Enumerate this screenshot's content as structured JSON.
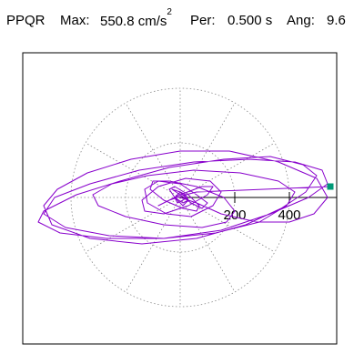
{
  "header": {
    "station": "PPQR",
    "max_label": "Max:",
    "max_value": "550.8 cm/s",
    "max_exponent": "2",
    "per_label": "Per:",
    "per_value": "0.500 s",
    "ang_label": "Ang:",
    "ang_value": "9.6"
  },
  "chart_data": {
    "type": "line",
    "title": "PPQR  Max: 550.8 cm/s2  Per: 0.500 s  Ang: 9.6",
    "xlabel": "",
    "ylabel": "",
    "units": "cm/s2",
    "max_value": 550.8,
    "period_s": 0.5,
    "angle_deg": 9.6,
    "xlim": [
      -580,
      580
    ],
    "ylim": [
      -580,
      580
    ],
    "polar_grid": {
      "radii": [
        200,
        400
      ],
      "spoke_step_deg": 30,
      "style": "dotted"
    },
    "x_tick_labels": [
      200,
      400
    ],
    "x_ticks": [
      200,
      400
    ],
    "grid": true,
    "legend": "none",
    "series": [
      {
        "x": [
          0,
          60,
          150,
          280,
          400,
          490,
          540,
          500,
          360,
          180,
          0,
          -180,
          -340,
          -450,
          -500,
          -470,
          -330,
          -140,
          60,
          240,
          370,
          460,
          500,
          450,
          330,
          160,
          -40,
          -220,
          -380,
          -500,
          -520,
          -440,
          -270,
          -60,
          150,
          330,
          470,
          540,
          520,
          420,
          250,
          50,
          -150,
          -330,
          -460,
          -500,
          -420,
          -260,
          -60,
          130,
          290,
          390,
          420,
          360,
          220,
          50,
          -120,
          -250,
          -320,
          -300,
          -200,
          -60,
          80,
          170,
          200,
          160,
          60,
          -40,
          -100,
          -110,
          -60,
          10,
          60,
          70,
          30,
          -20,
          -40,
          -20,
          10,
          30,
          20,
          0,
          -20,
          -10,
          10,
          20,
          0,
          -20,
          10,
          30,
          0,
          -30,
          0,
          40,
          80,
          100,
          60,
          0,
          -80,
          -130,
          -120,
          -50,
          40,
          120,
          150,
          110,
          20,
          -80,
          -140,
          -130,
          -60,
          30,
          100,
          120,
          80,
          0,
          -60,
          -80,
          -40,
          20,
          60,
          550
        ],
        "y": [
          0,
          -20,
          -60,
          -90,
          -90,
          -60,
          0,
          70,
          130,
          170,
          170,
          140,
          90,
          30,
          -30,
          -100,
          -150,
          -170,
          -150,
          -100,
          -40,
          20,
          80,
          120,
          150,
          140,
          110,
          60,
          10,
          -50,
          -90,
          -130,
          -150,
          -150,
          -120,
          -60,
          0,
          50,
          100,
          130,
          140,
          130,
          100,
          50,
          0,
          -60,
          -110,
          -140,
          -150,
          -130,
          -90,
          -30,
          20,
          60,
          90,
          100,
          80,
          50,
          10,
          -30,
          -70,
          -100,
          -110,
          -90,
          -50,
          0,
          40,
          60,
          60,
          30,
          -10,
          -40,
          -50,
          -30,
          10,
          40,
          30,
          0,
          -20,
          -10,
          10,
          20,
          0,
          -20,
          -10,
          10,
          20,
          0,
          -30,
          -10,
          20,
          30,
          10,
          -20,
          -40,
          -20,
          10,
          50,
          60,
          30,
          -20,
          -60,
          -70,
          -30,
          20,
          60,
          70,
          40,
          -10,
          -50,
          -60,
          -30,
          10,
          40,
          40,
          10,
          -20,
          -30,
          -10,
          10,
          20,
          40
        ]
      }
    ],
    "colors": {
      "trace": "#8800cc",
      "end_marker": "#009977",
      "frame": "#000000",
      "grid": "#888888"
    }
  }
}
